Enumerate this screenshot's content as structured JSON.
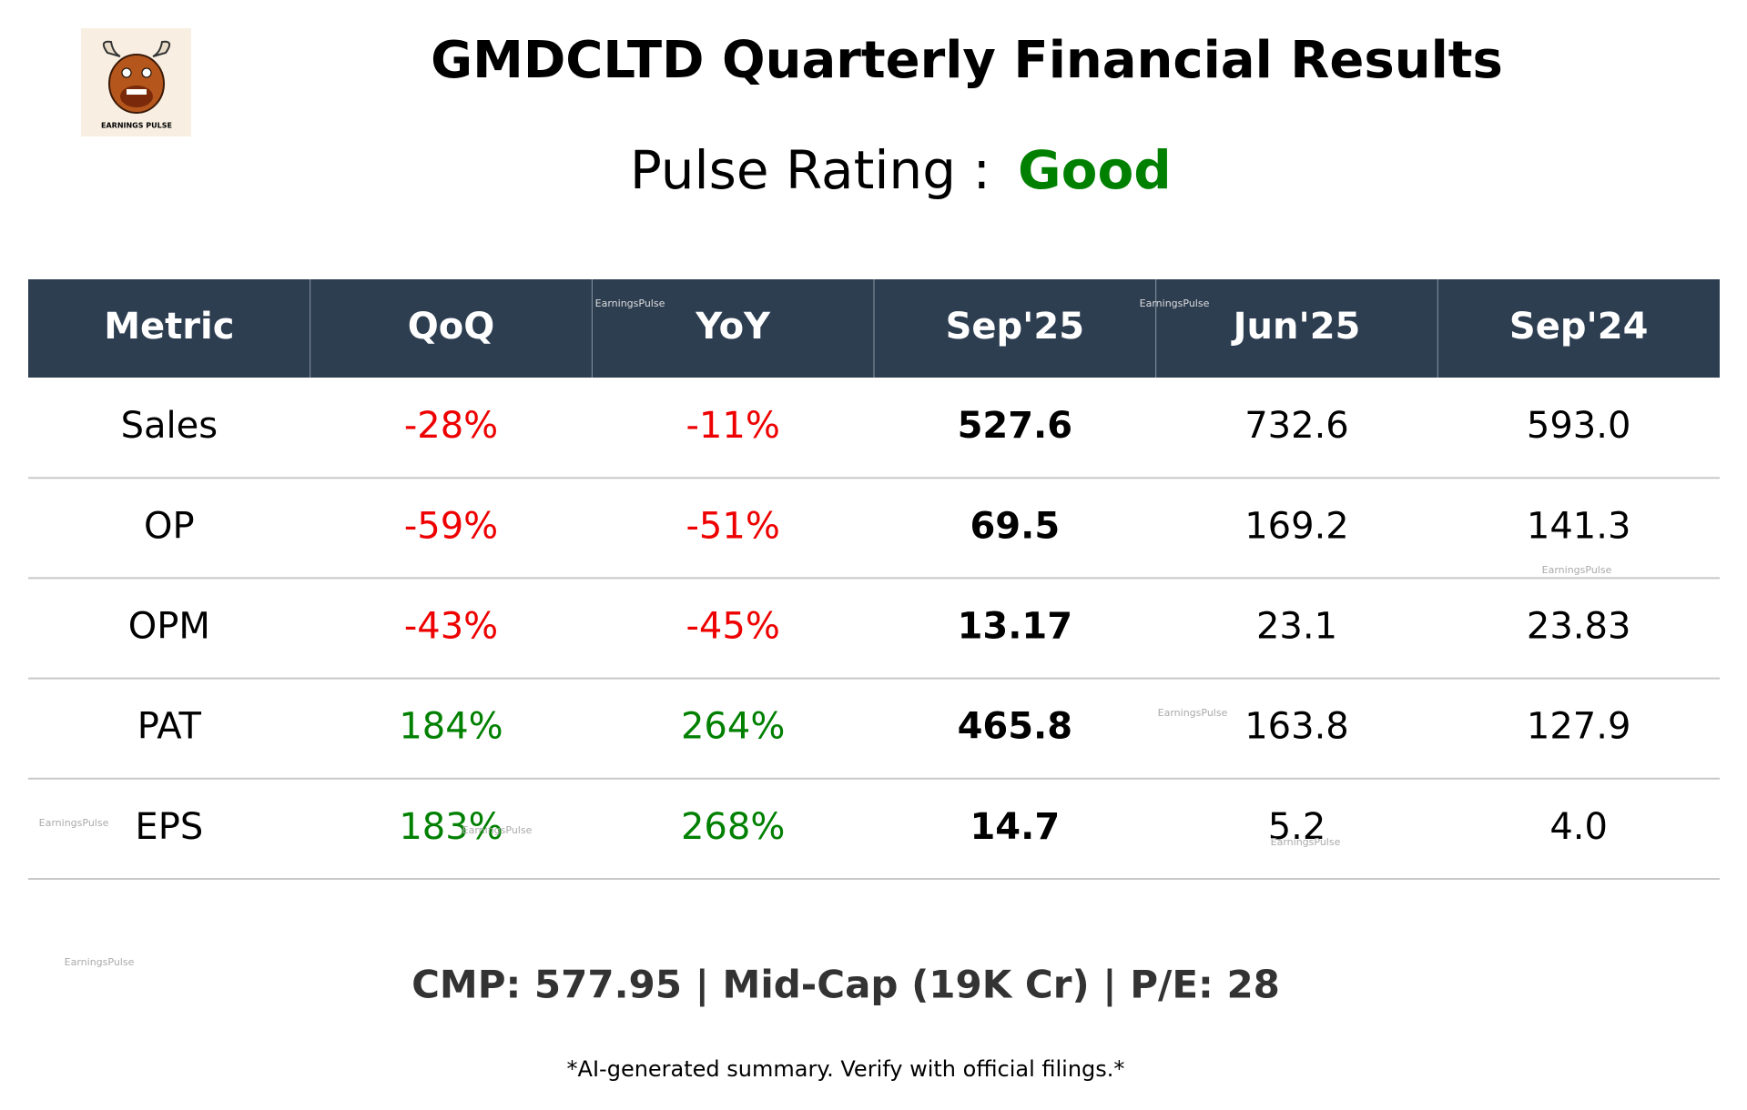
{
  "header": {
    "logo_text": "EARNINGS PULSE",
    "title": "GMDCLTD Quarterly Financial Results",
    "rating_label": "Pulse Rating :",
    "rating_value": "Good"
  },
  "table": {
    "columns": [
      "Metric",
      "QoQ",
      "YoY",
      "Sep'25",
      "Jun'25",
      "Sep'24"
    ],
    "rows": [
      [
        "Sales",
        "-28%",
        "-11%",
        "527.6",
        "732.6",
        "593.0"
      ],
      [
        "OP",
        "-59%",
        "-51%",
        "69.5",
        "169.2",
        "141.3"
      ],
      [
        "OPM",
        "-43%",
        "-45%",
        "13.17",
        "23.1",
        "23.83"
      ],
      [
        "PAT",
        "184%",
        "264%",
        "465.8",
        "163.8",
        "127.9"
      ],
      [
        "EPS",
        "183%",
        "268%",
        "14.7",
        "5.2",
        "4.0"
      ]
    ]
  },
  "footer": {
    "summary": "CMP: 577.95 | Mid-Cap (19K Cr) | P/E: 28",
    "disclaimer": "*AI-generated summary. Verify with official filings.*"
  },
  "watermarks": [
    "EarningsPulse",
    "EarningsPulse",
    "EarningsPulse",
    "EarningsPulse",
    "EarningsPulse",
    "EarningsPulse",
    "EarningsPulse",
    "EarningsPulse"
  ]
}
